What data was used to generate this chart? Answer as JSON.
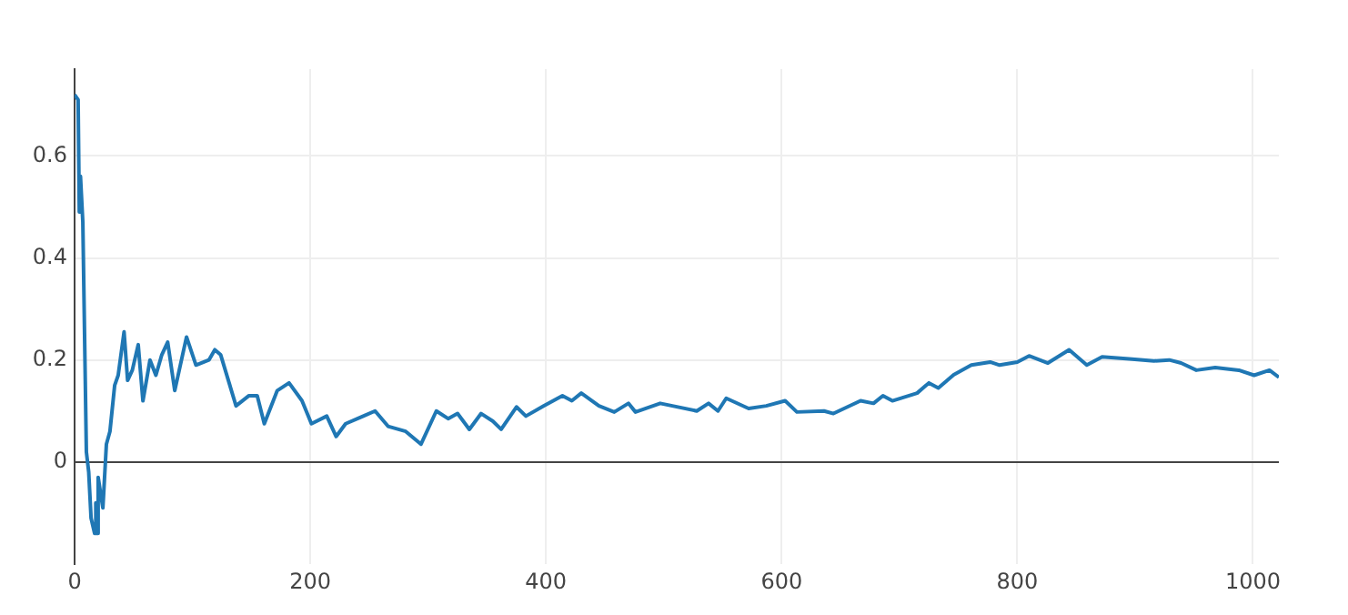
{
  "chart_data": {
    "type": "line",
    "xlim": [
      0,
      1022
    ],
    "xticks": [
      0,
      200,
      400,
      600,
      800,
      1000
    ],
    "ylim": [
      -0.2,
      0.77
    ],
    "yticks": [
      0,
      0.2,
      0.4,
      0.6
    ],
    "grid": true,
    "marker": "none",
    "line_style": "solid",
    "series": [
      {
        "color": "#1f77b4",
        "x": [
          0,
          3,
          4,
          5,
          7,
          10,
          12,
          14,
          17,
          18,
          19,
          20,
          24,
          27,
          30,
          34,
          37,
          42,
          45,
          49,
          54,
          58,
          64,
          69,
          74,
          79,
          85,
          95,
          103,
          114,
          119,
          124,
          137,
          148,
          155,
          161,
          172,
          182,
          193,
          201,
          214,
          222,
          230,
          245,
          255,
          266,
          281,
          294,
          307,
          317,
          325,
          335,
          345,
          355,
          362,
          375,
          383,
          398,
          414,
          422,
          430,
          445,
          458,
          470,
          476,
          497,
          528,
          538,
          546,
          553,
          572,
          587,
          603,
          613,
          636,
          644,
          667,
          678,
          686,
          694,
          715,
          725,
          733,
          746,
          761,
          777,
          785,
          800,
          810,
          826,
          844,
          859,
          872,
          895,
          916,
          929,
          939,
          952,
          968,
          988,
          1001,
          1014,
          1022
        ],
        "values": [
          0.72,
          0.71,
          0.49,
          0.56,
          0.47,
          0.02,
          -0.02,
          -0.11,
          -0.14,
          -0.08,
          -0.14,
          -0.03,
          -0.09,
          0.035,
          0.06,
          0.15,
          0.17,
          0.255,
          0.16,
          0.18,
          0.23,
          0.12,
          0.2,
          0.17,
          0.21,
          0.235,
          0.14,
          0.245,
          0.19,
          0.2,
          0.22,
          0.21,
          0.11,
          0.13,
          0.13,
          0.075,
          0.14,
          0.155,
          0.12,
          0.075,
          0.09,
          0.05,
          0.075,
          0.09,
          0.1,
          0.07,
          0.06,
          0.035,
          0.1,
          0.085,
          0.095,
          0.064,
          0.095,
          0.08,
          0.064,
          0.108,
          0.09,
          0.11,
          0.13,
          0.12,
          0.135,
          0.11,
          0.098,
          0.115,
          0.098,
          0.115,
          0.1,
          0.115,
          0.1,
          0.125,
          0.105,
          0.11,
          0.12,
          0.098,
          0.1,
          0.095,
          0.12,
          0.115,
          0.13,
          0.12,
          0.135,
          0.155,
          0.145,
          0.171,
          0.19,
          0.196,
          0.19,
          0.196,
          0.208,
          0.194,
          0.22,
          0.19,
          0.206,
          0.202,
          0.198,
          0.2,
          0.194,
          0.18,
          0.185,
          0.18,
          0.17,
          0.18,
          0.166
        ]
      }
    ]
  }
}
